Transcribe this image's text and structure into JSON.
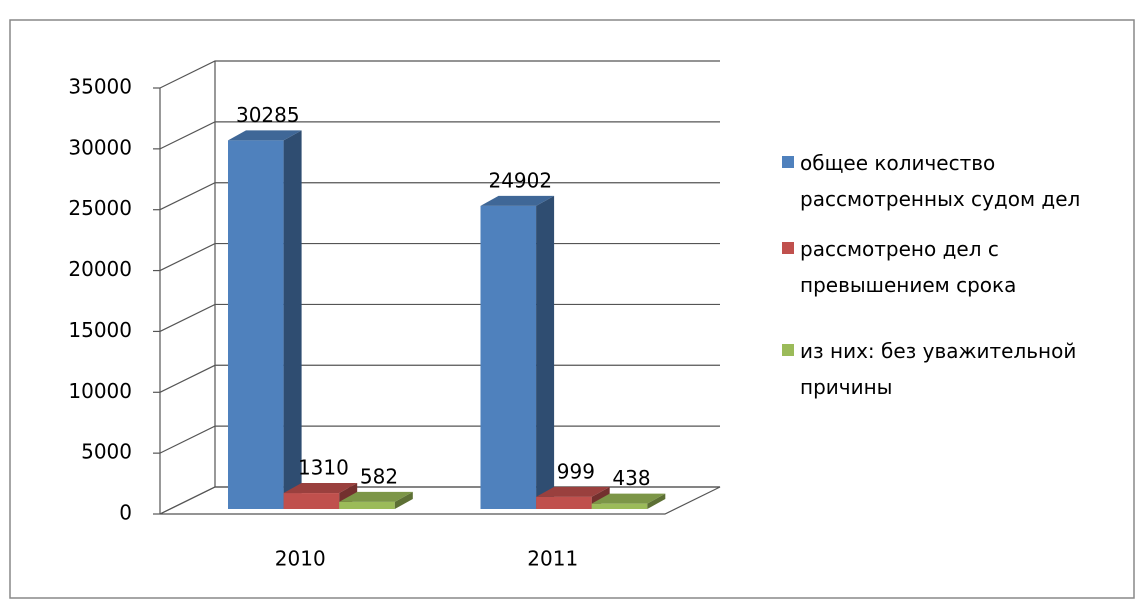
{
  "chart_data": {
    "type": "bar3d",
    "categories": [
      "2010",
      "2011"
    ],
    "series": [
      {
        "name": "общее количество рассмотренных судом дел",
        "color": "#4f81bd",
        "values": [
          30285,
          24902
        ]
      },
      {
        "name": "рассмотрено дел с превышением срока",
        "color": "#c0504d",
        "values": [
          1310,
          999
        ]
      },
      {
        "name": "из них: без уважительной причины",
        "color": "#9bbb59",
        "values": [
          582,
          438
        ]
      }
    ],
    "ylim": [
      0,
      35000
    ],
    "yticks": [
      0,
      5000,
      10000,
      15000,
      20000,
      25000,
      30000,
      35000
    ],
    "grid": true,
    "legend": "right"
  }
}
